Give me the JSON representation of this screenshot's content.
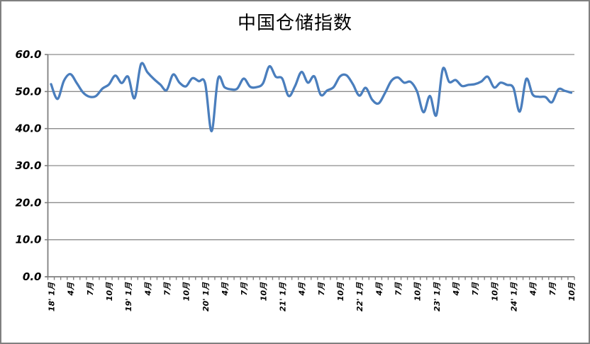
{
  "chart_data": {
    "type": "line",
    "title": "中国仓储指数",
    "legend": "none",
    "grid": "horizontal",
    "ylim": [
      0,
      60
    ],
    "y_tick_step": 10,
    "y_tick_labels": [
      "60.0",
      "50.0",
      "40.0",
      "30.0",
      "20.0",
      "10.0",
      "0.0"
    ],
    "x_label_interval": 3,
    "x_tick_labels": [
      "18' 1月",
      "4月",
      "7月",
      "10月",
      "19' 1月",
      "4月",
      "7月",
      "10月",
      "20' 1月",
      "4月",
      "7月",
      "10月",
      "21' 1月",
      "4月",
      "7月",
      "10月",
      "22' 1月",
      "4月",
      "7月",
      "10月",
      "23' 1月",
      "4月",
      "7月",
      "10月",
      "24' 1月",
      "4月",
      "7月",
      "10月"
    ],
    "x_range_note": "monthly points Jan 2018 - Oct 2024",
    "values": [
      52.0,
      48.0,
      52.9,
      54.7,
      52.3,
      49.7,
      48.6,
      48.8,
      50.8,
      51.9,
      54.3,
      52.3,
      54.0,
      48.2,
      57.4,
      55.2,
      53.4,
      51.9,
      50.4,
      54.6,
      52.4,
      51.4,
      53.6,
      52.8,
      52.2,
      39.3,
      53.5,
      51.2,
      50.6,
      50.8,
      53.5,
      51.3,
      51.2,
      52.2,
      56.8,
      54.0,
      53.5,
      48.8,
      51.5,
      55.3,
      52.4,
      54.1,
      49.1,
      50.3,
      51.2,
      54.1,
      54.4,
      52.0,
      48.9,
      51.0,
      47.8,
      46.8,
      49.6,
      52.9,
      53.8,
      52.4,
      52.6,
      50.0,
      44.4,
      48.8,
      43.6,
      56.1,
      52.6,
      53.1,
      51.5,
      51.8,
      52.0,
      52.7,
      54.0,
      51.1,
      52.4,
      51.8,
      51.0,
      44.6,
      53.4,
      49.2,
      48.6,
      48.5,
      47.1,
      50.6,
      50.2,
      49.7
    ],
    "line_color": "#4A7EBD",
    "grid_color": "#8C8C8C",
    "axis_color": "#7F7F7F"
  }
}
